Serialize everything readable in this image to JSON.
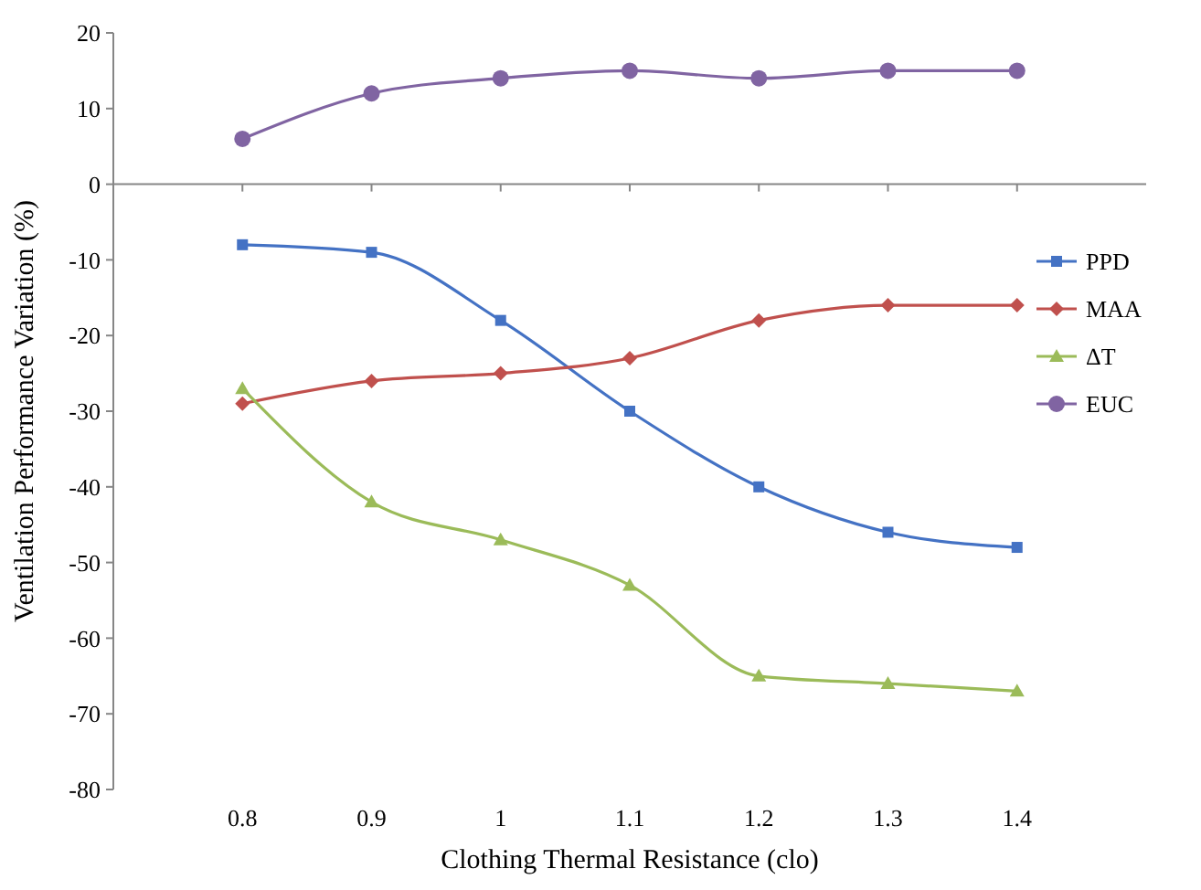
{
  "chart_data": {
    "type": "line",
    "xlabel": "Clothing Thermal Resistance (clo)",
    "ylabel": "Ventilation Performance Variation (%)",
    "x": [
      0.8,
      0.9,
      1,
      1.1,
      1.2,
      1.3,
      1.4
    ],
    "xlim": [
      0.7,
      1.5
    ],
    "xticks": [
      0.8,
      0.9,
      1,
      1.1,
      1.2,
      1.3,
      1.4
    ],
    "ylim": [
      -80,
      20
    ],
    "yticks": [
      -80,
      -70,
      -60,
      -50,
      -40,
      -30,
      -20,
      -10,
      0,
      10,
      20
    ],
    "legend": "top right",
    "line_style": "solid",
    "series": [
      {
        "name": "PPD",
        "color": "#4472c4",
        "marker": "square",
        "values": [
          -8,
          -9,
          -18,
          -30,
          -40,
          -46,
          -48
        ]
      },
      {
        "name": "MAA",
        "color": "#c0504d",
        "marker": "diamond",
        "values": [
          -29,
          -26,
          -25,
          -23,
          -18,
          -16,
          -16
        ]
      },
      {
        "name": "ΔT",
        "color": "#9bbb59",
        "marker": "triangle",
        "values": [
          -27,
          -42,
          -47,
          -53,
          -65,
          -66,
          -67
        ]
      },
      {
        "name": "EUC",
        "color": "#8064a2",
        "marker": "circle",
        "values": [
          6,
          12,
          14,
          15,
          14,
          15,
          15
        ]
      }
    ]
  }
}
